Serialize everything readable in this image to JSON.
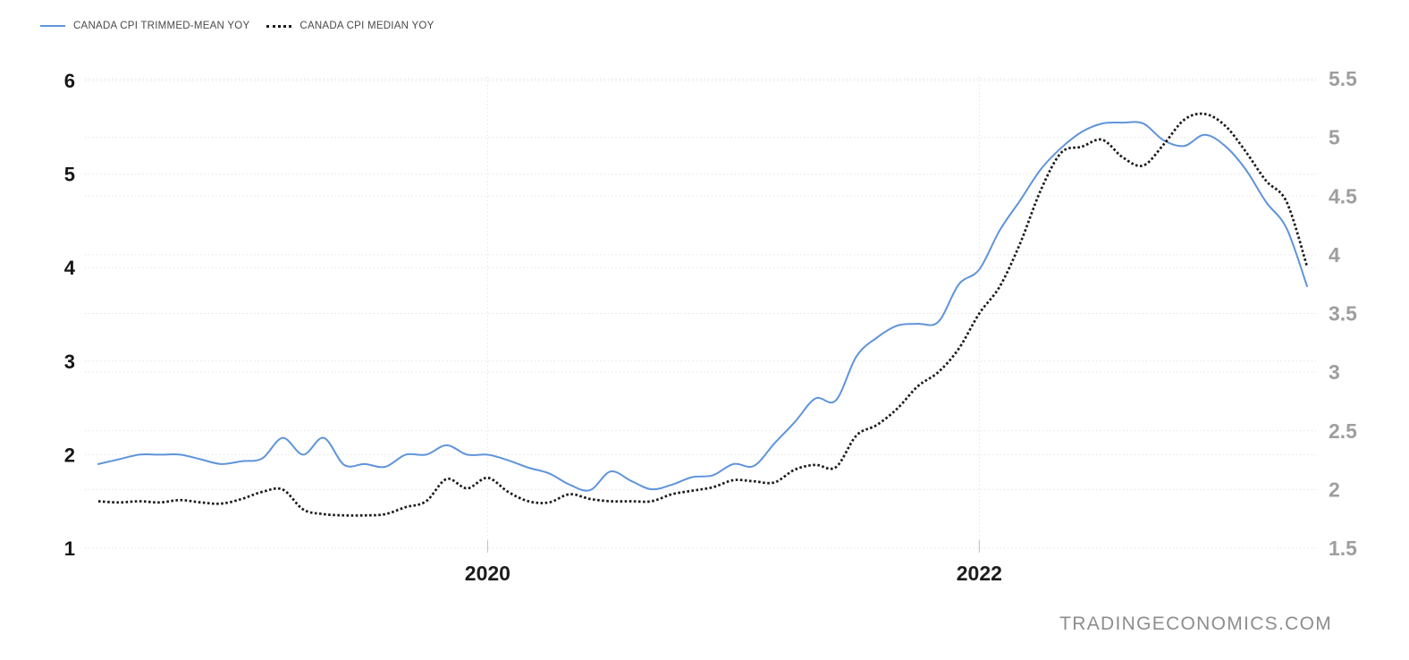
{
  "legend": [
    {
      "label": "CANADA CPI TRIMMED-MEAN YOY",
      "color": "#5f94da",
      "style": "solid"
    },
    {
      "label": "CANADA CPI MEDIAN YOY",
      "color": "#1a1a1a",
      "style": "dotted"
    }
  ],
  "watermark": "TRADINGECONOMICS.COM",
  "colors": {
    "trimmed_mean_line": "#5f94da",
    "median_line": "#1a1a1a",
    "grid": "#e3e3e3",
    "left_tick_text": "#161616",
    "right_tick_text": "#9e9e9e",
    "year_tick_text": "#1c1c1c",
    "tick_stub": "#c0c0c0"
  },
  "chart_data": {
    "type": "line",
    "title": "",
    "xlabel": "",
    "ylabel": "",
    "grid": "dotted horizontal gridlines for both y-axes, dotted vertical gridlines at year ticks",
    "legend_position": "top-left",
    "x": [
      "2018-06",
      "2018-07",
      "2018-08",
      "2018-09",
      "2018-10",
      "2018-11",
      "2018-12",
      "2019-01",
      "2019-02",
      "2019-03",
      "2019-04",
      "2019-05",
      "2019-06",
      "2019-07",
      "2019-08",
      "2019-09",
      "2019-10",
      "2019-11",
      "2019-12",
      "2020-01",
      "2020-02",
      "2020-03",
      "2020-04",
      "2020-05",
      "2020-06",
      "2020-07",
      "2020-08",
      "2020-09",
      "2020-10",
      "2020-11",
      "2020-12",
      "2021-01",
      "2021-02",
      "2021-03",
      "2021-04",
      "2021-05",
      "2021-06",
      "2021-07",
      "2021-08",
      "2021-09",
      "2021-10",
      "2021-11",
      "2021-12",
      "2022-01",
      "2022-02",
      "2022-03",
      "2022-04",
      "2022-05",
      "2022-06",
      "2022-07",
      "2022-08",
      "2022-09",
      "2022-10",
      "2022-11",
      "2022-12",
      "2023-01",
      "2023-02",
      "2023-03",
      "2023-04",
      "2023-05"
    ],
    "series": [
      {
        "name": "CANADA CPI TRIMMED-MEAN YOY",
        "axis": "left",
        "color": "#5f94da",
        "line_style": "solid",
        "values": [
          1.9,
          1.95,
          2.0,
          2.0,
          2.0,
          1.95,
          1.9,
          1.93,
          1.96,
          2.18,
          2.0,
          2.18,
          1.89,
          1.9,
          1.87,
          2.0,
          2.0,
          2.1,
          2.0,
          2.0,
          1.94,
          1.86,
          1.8,
          1.68,
          1.62,
          1.82,
          1.72,
          1.63,
          1.68,
          1.76,
          1.78,
          1.9,
          1.88,
          2.12,
          2.35,
          2.6,
          2.58,
          3.05,
          3.25,
          3.38,
          3.4,
          3.42,
          3.82,
          3.98,
          4.4,
          4.72,
          5.05,
          5.28,
          5.45,
          5.54,
          5.55,
          5.54,
          5.36,
          5.3,
          5.42,
          5.3,
          5.05,
          4.7,
          4.42,
          3.8
        ]
      },
      {
        "name": "CANADA CPI MEDIAN YOY",
        "axis": "right",
        "color": "#1a1a1a",
        "line_style": "dotted",
        "values": [
          1.9,
          1.89,
          1.9,
          1.89,
          1.91,
          1.89,
          1.88,
          1.92,
          1.98,
          2.0,
          1.83,
          1.79,
          1.78,
          1.78,
          1.79,
          1.85,
          1.9,
          2.09,
          2.01,
          2.1,
          1.98,
          1.9,
          1.89,
          1.96,
          1.92,
          1.9,
          1.9,
          1.9,
          1.96,
          1.99,
          2.02,
          2.08,
          2.07,
          2.06,
          2.17,
          2.21,
          2.19,
          2.46,
          2.55,
          2.69,
          2.88,
          3.0,
          3.2,
          3.5,
          3.73,
          4.1,
          4.55,
          4.87,
          4.92,
          4.98,
          4.83,
          4.76,
          4.94,
          5.15,
          5.2,
          5.1,
          4.88,
          4.63,
          4.45,
          3.9
        ]
      }
    ],
    "left_axis": {
      "tick_labels": [
        "6",
        "5",
        "4",
        "3",
        "2",
        "1"
      ],
      "range": [
        1,
        6
      ]
    },
    "right_axis": {
      "tick_labels": [
        "5.5",
        "5",
        "4.5",
        "4",
        "3.5",
        "3",
        "2.5",
        "2",
        "1.5"
      ],
      "range": [
        1.5,
        5.5
      ]
    },
    "x_ticks": [
      {
        "label": "2020",
        "month_index": 19
      },
      {
        "label": "2022",
        "month_index": 43
      }
    ]
  }
}
